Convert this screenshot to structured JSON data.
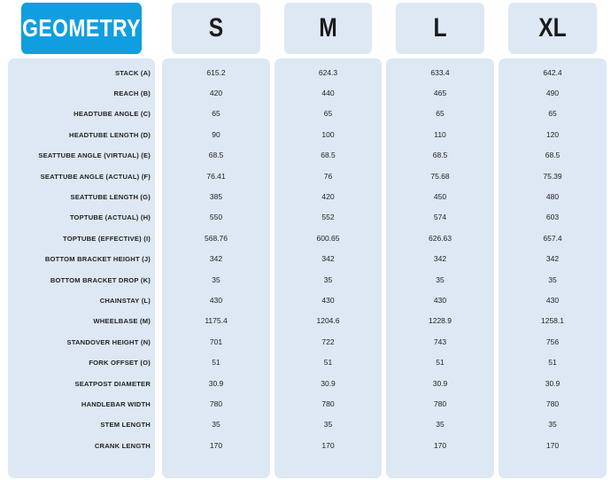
{
  "header": {
    "title": "GEOMETRY",
    "sizes": [
      "S",
      "M",
      "L",
      "XL"
    ]
  },
  "rows": [
    {
      "label": "STACK (A)",
      "values": [
        "615.2",
        "624.3",
        "633.4",
        "642.4"
      ]
    },
    {
      "label": "REACH (B)",
      "values": [
        "420",
        "440",
        "465",
        "490"
      ]
    },
    {
      "label": "HEADTUBE ANGLE (C)",
      "values": [
        "65",
        "65",
        "65",
        "65"
      ]
    },
    {
      "label": "HEADTUBE LENGTH (D)",
      "values": [
        "90",
        "100",
        "110",
        "120"
      ]
    },
    {
      "label": "SEATTUBE ANGLE (VIRTUAL) (E)",
      "values": [
        "68.5",
        "68.5",
        "68.5",
        "68.5"
      ]
    },
    {
      "label": "SEATTUBE ANGLE (ACTUAL) (F)",
      "values": [
        "76.41",
        "76",
        "75.68",
        "75.39"
      ]
    },
    {
      "label": "SEATTUBE LENGTH (G)",
      "values": [
        "385",
        "420",
        "450",
        "480"
      ]
    },
    {
      "label": "TOPTUBE (ACTUAL) (H)",
      "values": [
        "550",
        "552",
        "574",
        "603"
      ]
    },
    {
      "label": "TOPTUBE (EFFECTIVE) (I)",
      "values": [
        "568.76",
        "600.65",
        "626.63",
        "657.4"
      ]
    },
    {
      "label": "BOTTOM BRACKET HEIGHT (J)",
      "values": [
        "342",
        "342",
        "342",
        "342"
      ]
    },
    {
      "label": "BOTTOM BRACKET DROP (K)",
      "values": [
        "35",
        "35",
        "35",
        "35"
      ]
    },
    {
      "label": "CHAINSTAY (L)",
      "values": [
        "430",
        "430",
        "430",
        "430"
      ]
    },
    {
      "label": "WHEELBASE (M)",
      "values": [
        "1175.4",
        "1204.6",
        "1228.9",
        "1258.1"
      ]
    },
    {
      "label": "STANDOVER HEIGHT (N)",
      "values": [
        "701",
        "722",
        "743",
        "756"
      ]
    },
    {
      "label": "FORK OFFSET (O)",
      "values": [
        "51",
        "51",
        "51",
        "51"
      ]
    },
    {
      "label": "SEATPOST DIAMETER",
      "values": [
        "30.9",
        "30.9",
        "30.9",
        "30.9"
      ]
    },
    {
      "label": "HANDLEBAR WIDTH",
      "values": [
        "780",
        "780",
        "780",
        "780"
      ]
    },
    {
      "label": "STEM LENGTH",
      "values": [
        "35",
        "35",
        "35",
        "35"
      ]
    },
    {
      "label": "CRANK LENGTH",
      "values": [
        "170",
        "170",
        "170",
        "170"
      ]
    }
  ],
  "colors": {
    "title_bg": "#119ee0",
    "panel_bg": "#dde8f4",
    "text": "#222222"
  }
}
